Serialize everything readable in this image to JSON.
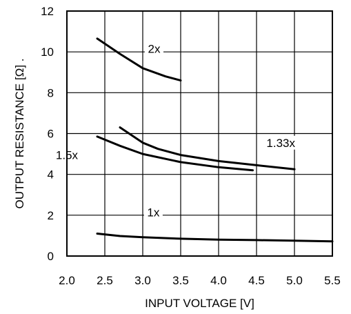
{
  "chart_data": {
    "type": "line",
    "xlabel": "INPUT VOLTAGE [V]",
    "ylabel": "OUTPUT RESISTANCE [Ω] .",
    "xlim": [
      2.0,
      5.5
    ],
    "ylim": [
      0,
      12
    ],
    "xticks": [
      "2.0",
      "2.5",
      "3.0",
      "3.5",
      "4.0",
      "4.5",
      "5.0",
      "5.5"
    ],
    "yticks": [
      "0",
      "2",
      "4",
      "6",
      "8",
      "10",
      "12"
    ],
    "grid": true,
    "series": [
      {
        "name": "2x",
        "label_at": [
          3.15,
          10.05
        ],
        "points": [
          [
            2.4,
            10.65
          ],
          [
            2.7,
            9.9
          ],
          [
            3.0,
            9.2
          ],
          [
            3.3,
            8.8
          ],
          [
            3.5,
            8.6
          ]
        ]
      },
      {
        "name": "1.5x",
        "label_at": [
          2.0,
          4.85
        ],
        "points": [
          [
            2.4,
            5.85
          ],
          [
            2.7,
            5.4
          ],
          [
            3.0,
            5.0
          ],
          [
            3.5,
            4.6
          ],
          [
            4.0,
            4.35
          ],
          [
            4.45,
            4.2
          ]
        ]
      },
      {
        "name": "1.33x",
        "label_at": [
          4.82,
          5.45
        ],
        "points": [
          [
            2.7,
            6.3
          ],
          [
            3.0,
            5.55
          ],
          [
            3.2,
            5.25
          ],
          [
            3.5,
            4.95
          ],
          [
            4.0,
            4.65
          ],
          [
            4.5,
            4.45
          ],
          [
            5.0,
            4.25
          ]
        ]
      },
      {
        "name": "1x",
        "label_at": [
          3.14,
          2.05
        ],
        "points": [
          [
            2.4,
            1.1
          ],
          [
            2.7,
            0.98
          ],
          [
            3.0,
            0.92
          ],
          [
            3.5,
            0.85
          ],
          [
            4.0,
            0.8
          ],
          [
            4.5,
            0.78
          ],
          [
            5.0,
            0.75
          ],
          [
            5.5,
            0.72
          ]
        ]
      }
    ]
  }
}
